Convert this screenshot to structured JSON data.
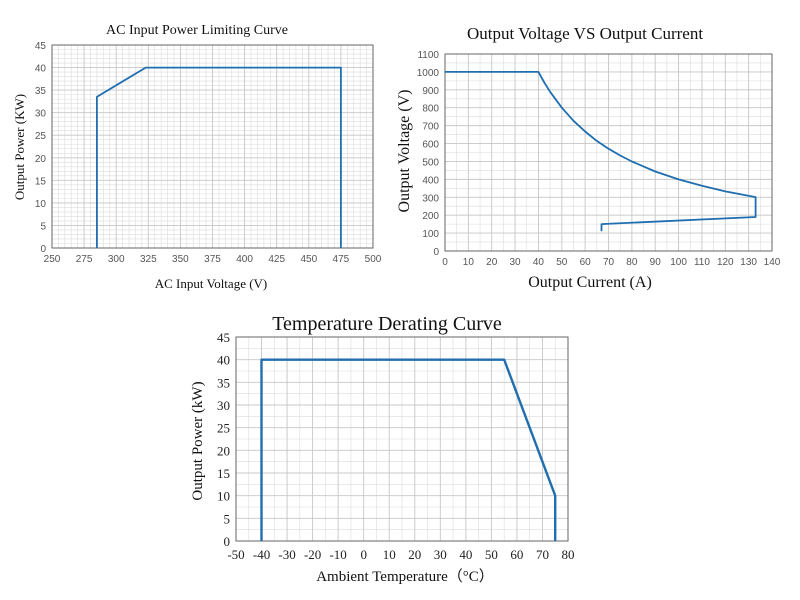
{
  "chart_data": [
    {
      "type": "line",
      "title": "AC Input Power Limiting Curve",
      "xlabel": "AC Input Voltage (V)",
      "ylabel": "Output Power (KW)",
      "xlim": [
        250,
        500
      ],
      "ylim": [
        0,
        45
      ],
      "xticks": [
        250,
        275,
        300,
        325,
        350,
        375,
        400,
        425,
        450,
        475,
        500
      ],
      "yticks": [
        0,
        5,
        10,
        15,
        20,
        25,
        30,
        35,
        40,
        45
      ],
      "grid": true,
      "series": [
        {
          "x": [
            285,
            285,
            323,
            475,
            475
          ],
          "y": [
            0,
            33.5,
            40,
            40,
            0
          ]
        }
      ]
    },
    {
      "type": "line",
      "title": "Output Voltage VS Output Current",
      "xlabel": "Output Current (A)",
      "ylabel": "Output Voltage (V)",
      "xlim": [
        0,
        140
      ],
      "ylim": [
        0,
        1100
      ],
      "xticks": [
        0,
        10,
        20,
        30,
        40,
        50,
        60,
        70,
        80,
        90,
        100,
        110,
        120,
        130,
        140
      ],
      "yticks": [
        0,
        100,
        200,
        300,
        400,
        500,
        600,
        700,
        800,
        900,
        1000,
        1100
      ],
      "grid": true,
      "series": [
        {
          "x": [
            0,
            40,
            42.5,
            45,
            50,
            55,
            60,
            65,
            70,
            75,
            80,
            90,
            100,
            110,
            120,
            133,
            133,
            133,
            67,
            67
          ],
          "y": [
            1000,
            1000,
            941,
            889,
            800,
            727,
            667,
            615,
            571,
            533,
            500,
            444,
            400,
            364,
            333,
            301,
            301,
            190,
            150,
            110
          ]
        }
      ]
    },
    {
      "type": "line",
      "title": "Temperature Derating Curve",
      "xlabel": "Ambient Temperature（°C）",
      "ylabel": "Output Power (kW)",
      "xlim": [
        -50,
        80
      ],
      "ylim": [
        0,
        45
      ],
      "xticks": [
        -50,
        -40,
        -30,
        -20,
        -10,
        0,
        10,
        20,
        30,
        40,
        50,
        60,
        70,
        80
      ],
      "yticks": [
        0,
        5,
        10,
        15,
        20,
        25,
        30,
        35,
        40,
        45
      ],
      "grid": true,
      "series": [
        {
          "x": [
            -40,
            -40,
            55,
            75,
            75
          ],
          "y": [
            0,
            40,
            40,
            10,
            0
          ]
        }
      ]
    }
  ],
  "colors": {
    "line": "#1f6eb0",
    "grid": "#c8c8c8",
    "axis": "#666666"
  }
}
